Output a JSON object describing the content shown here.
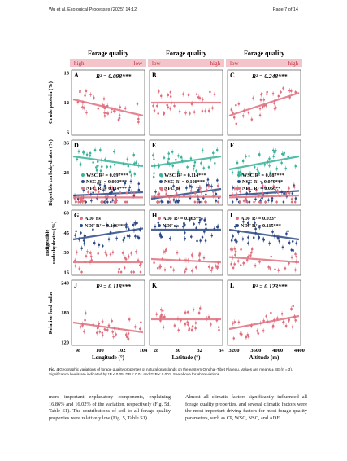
{
  "header": {
    "left": "Wu et al. Ecological Processes      (2025) 14:12",
    "right": "Page 7 of 14"
  },
  "figure": {
    "columns": [
      {
        "title": "Forage quality",
        "scale_left": "high",
        "scale_right": "low",
        "x_ticks": [
          98,
          100,
          102,
          104
        ],
        "x_label": "Longitude (°)"
      },
      {
        "title": "Forage quality",
        "scale_left": "low",
        "scale_right": "high",
        "x_ticks": [
          28,
          30,
          32,
          34
        ],
        "x_label": "Latitude (°)"
      },
      {
        "title": "Forage quality",
        "scale_left": "low",
        "scale_right": "high",
        "x_ticks": [
          3200,
          3600,
          4000,
          4400
        ],
        "x_label": "Altitude (m)"
      }
    ],
    "rows": [
      {
        "y_label": [
          "Crude protein (%)"
        ],
        "y_ticks": [
          6,
          12,
          18
        ]
      },
      {
        "y_label": [
          "Digestible carbohydrates (%)"
        ],
        "y_ticks": [
          12,
          24,
          36
        ]
      },
      {
        "y_label": [
          "Indigestible",
          "carbohydrates (%)"
        ],
        "y_ticks": [
          15,
          30,
          45,
          60
        ]
      },
      {
        "y_label": [
          "Relative feed value"
        ],
        "y_ticks": [
          120,
          180,
          240
        ]
      }
    ],
    "panels": [
      [
        {
          "letter": "A",
          "notes": [
            "R² = 0.098***"
          ]
        },
        {
          "letter": "B",
          "notes": []
        },
        {
          "letter": "C",
          "notes": [
            "R² = 0.248***"
          ]
        }
      ],
      [
        {
          "letter": "D",
          "notes": [
            "WSC R² = 0.097***",
            "NSC R² = 0.093***",
            "NFC R² = 0.114***"
          ]
        },
        {
          "letter": "E",
          "notes": [
            "WSC R² = 0.114***",
            "NSC R² = 0.108***",
            "NFC ns"
          ]
        },
        {
          "letter": "F",
          "notes": [
            "WSC R² = 0.087***",
            "NSC R² = 0.079***",
            "NFC R² = 0.066**"
          ]
        }
      ],
      [
        {
          "letter": "G",
          "notes": [
            "ADF ns",
            "NDF R² = 0.146***"
          ]
        },
        {
          "letter": "H",
          "notes": [
            "ADF R² = 0.063**",
            "NDF ns"
          ]
        },
        {
          "letter": "I",
          "notes": [
            "ADF R² = 0.033*",
            "NDF R² = 0.115***"
          ]
        }
      ],
      [
        {
          "letter": "J",
          "notes": [
            "R² = 0.118***"
          ]
        },
        {
          "letter": "K",
          "notes": []
        },
        {
          "letter": "L",
          "notes": [
            "R² = 0.123***"
          ]
        }
      ]
    ],
    "caption_label": "Fig. 4",
    "caption": "Geographic variations of forage quality properties of natural grasslands on the eastern Qinghai-Tibet Plateau. Values are means ± SE (n = 3). Significance levels are indicated by *P < 0.05; **P < 0.01 and ***P < 0.001. See above for abbreviations"
  },
  "body": {
    "left": "more important explanatory components, explaining 16.86% and 16.02% of the variation, respectively (Fig. 5d, Table S1). The contributions of soil to all forage quality properties were relatively low (Fig. 5, Table S1).",
    "right": "Almost all climatic factors significantly influenced all forage quality properties, and several climatic factors were the most important driving factors for most forage quality parameters, such as CP, WSC, NSC, and ADF"
  }
}
